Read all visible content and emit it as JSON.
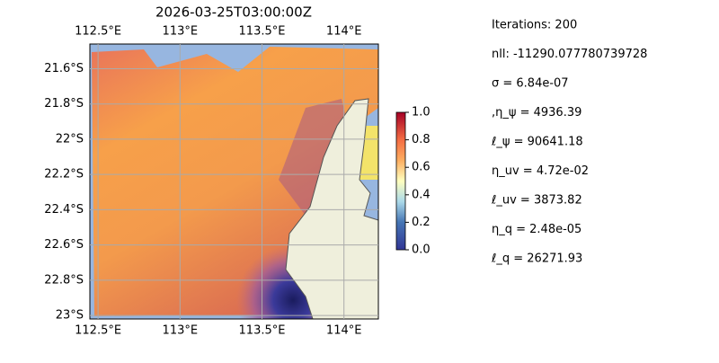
{
  "map": {
    "title": "2026-03-25T03:00:00Z",
    "lonlim": [
      112.45,
      114.21
    ],
    "latlim": [
      -23.02,
      -21.46
    ],
    "lon_ticks": [
      {
        "value": 112.5,
        "label": "112.5°E"
      },
      {
        "value": 113,
        "label": "113°E"
      },
      {
        "value": 113.5,
        "label": "113.5°E"
      },
      {
        "value": 114,
        "label": "114°E"
      }
    ],
    "lat_ticks": [
      {
        "value": -21.6,
        "label": "21.6°S"
      },
      {
        "value": -21.8,
        "label": "21.8°S"
      },
      {
        "value": -22,
        "label": "22°S"
      },
      {
        "value": -22.2,
        "label": "22.2°S"
      },
      {
        "value": -22.4,
        "label": "22.4°S"
      },
      {
        "value": -22.6,
        "label": "22.6°S"
      },
      {
        "value": -22.8,
        "label": "22.8°S"
      },
      {
        "value": -23,
        "label": "23°S"
      }
    ],
    "colorbar": {
      "lim": [
        0,
        1
      ],
      "ticks": [
        {
          "value": 0,
          "label": "0.0"
        },
        {
          "value": 0.2,
          "label": "0.2"
        },
        {
          "value": 0.4,
          "label": "0.4"
        },
        {
          "value": 0.6,
          "label": "0.6"
        },
        {
          "value": 0.8,
          "label": "0.8"
        },
        {
          "value": 1,
          "label": "1.0"
        }
      ]
    }
  },
  "info_lines": [
    "Iterations: 200",
    "nll: -11290.077780739728",
    "σ = 6.84e-07",
    ",η_ψ = 4936.39",
    "ℓ_ψ = 90641.18",
    "η_uv = 4.72e-02",
    "ℓ_uv = 3873.82",
    "η_q = 2.48e-05",
    "ℓ_q = 26271.93"
  ]
}
